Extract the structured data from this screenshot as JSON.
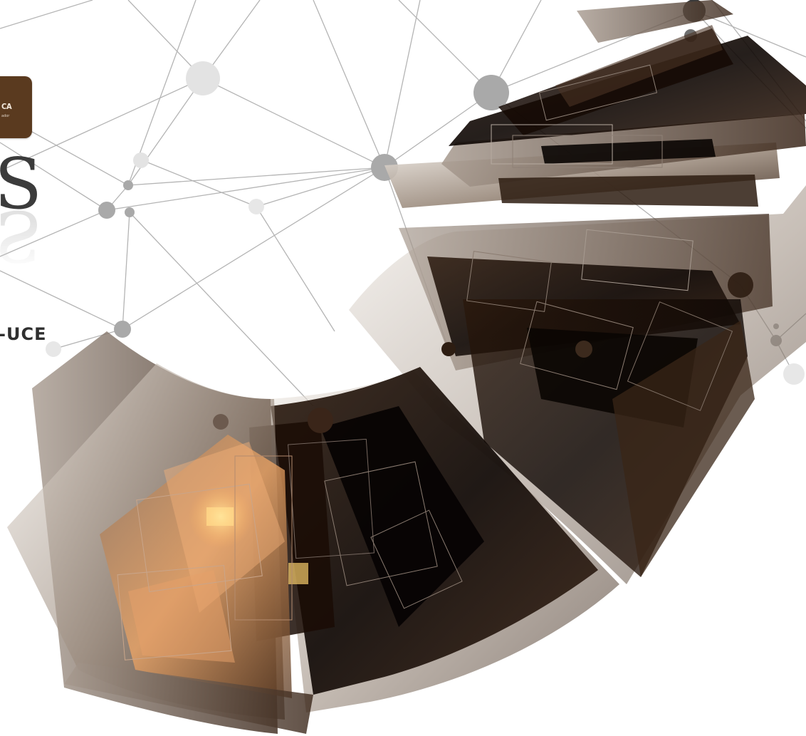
{
  "logo": {
    "text": "CA",
    "subtext": "ador"
  },
  "heading": {
    "letter": "S",
    "reflection": "S"
  },
  "institution_label": "-UCE",
  "colors": {
    "background": "#ffffff",
    "brand_brown": "#5a3a1f",
    "dark_brown": "#1a0d06",
    "amber": "#e39a5a",
    "network_grey": "#b8b8b8"
  }
}
